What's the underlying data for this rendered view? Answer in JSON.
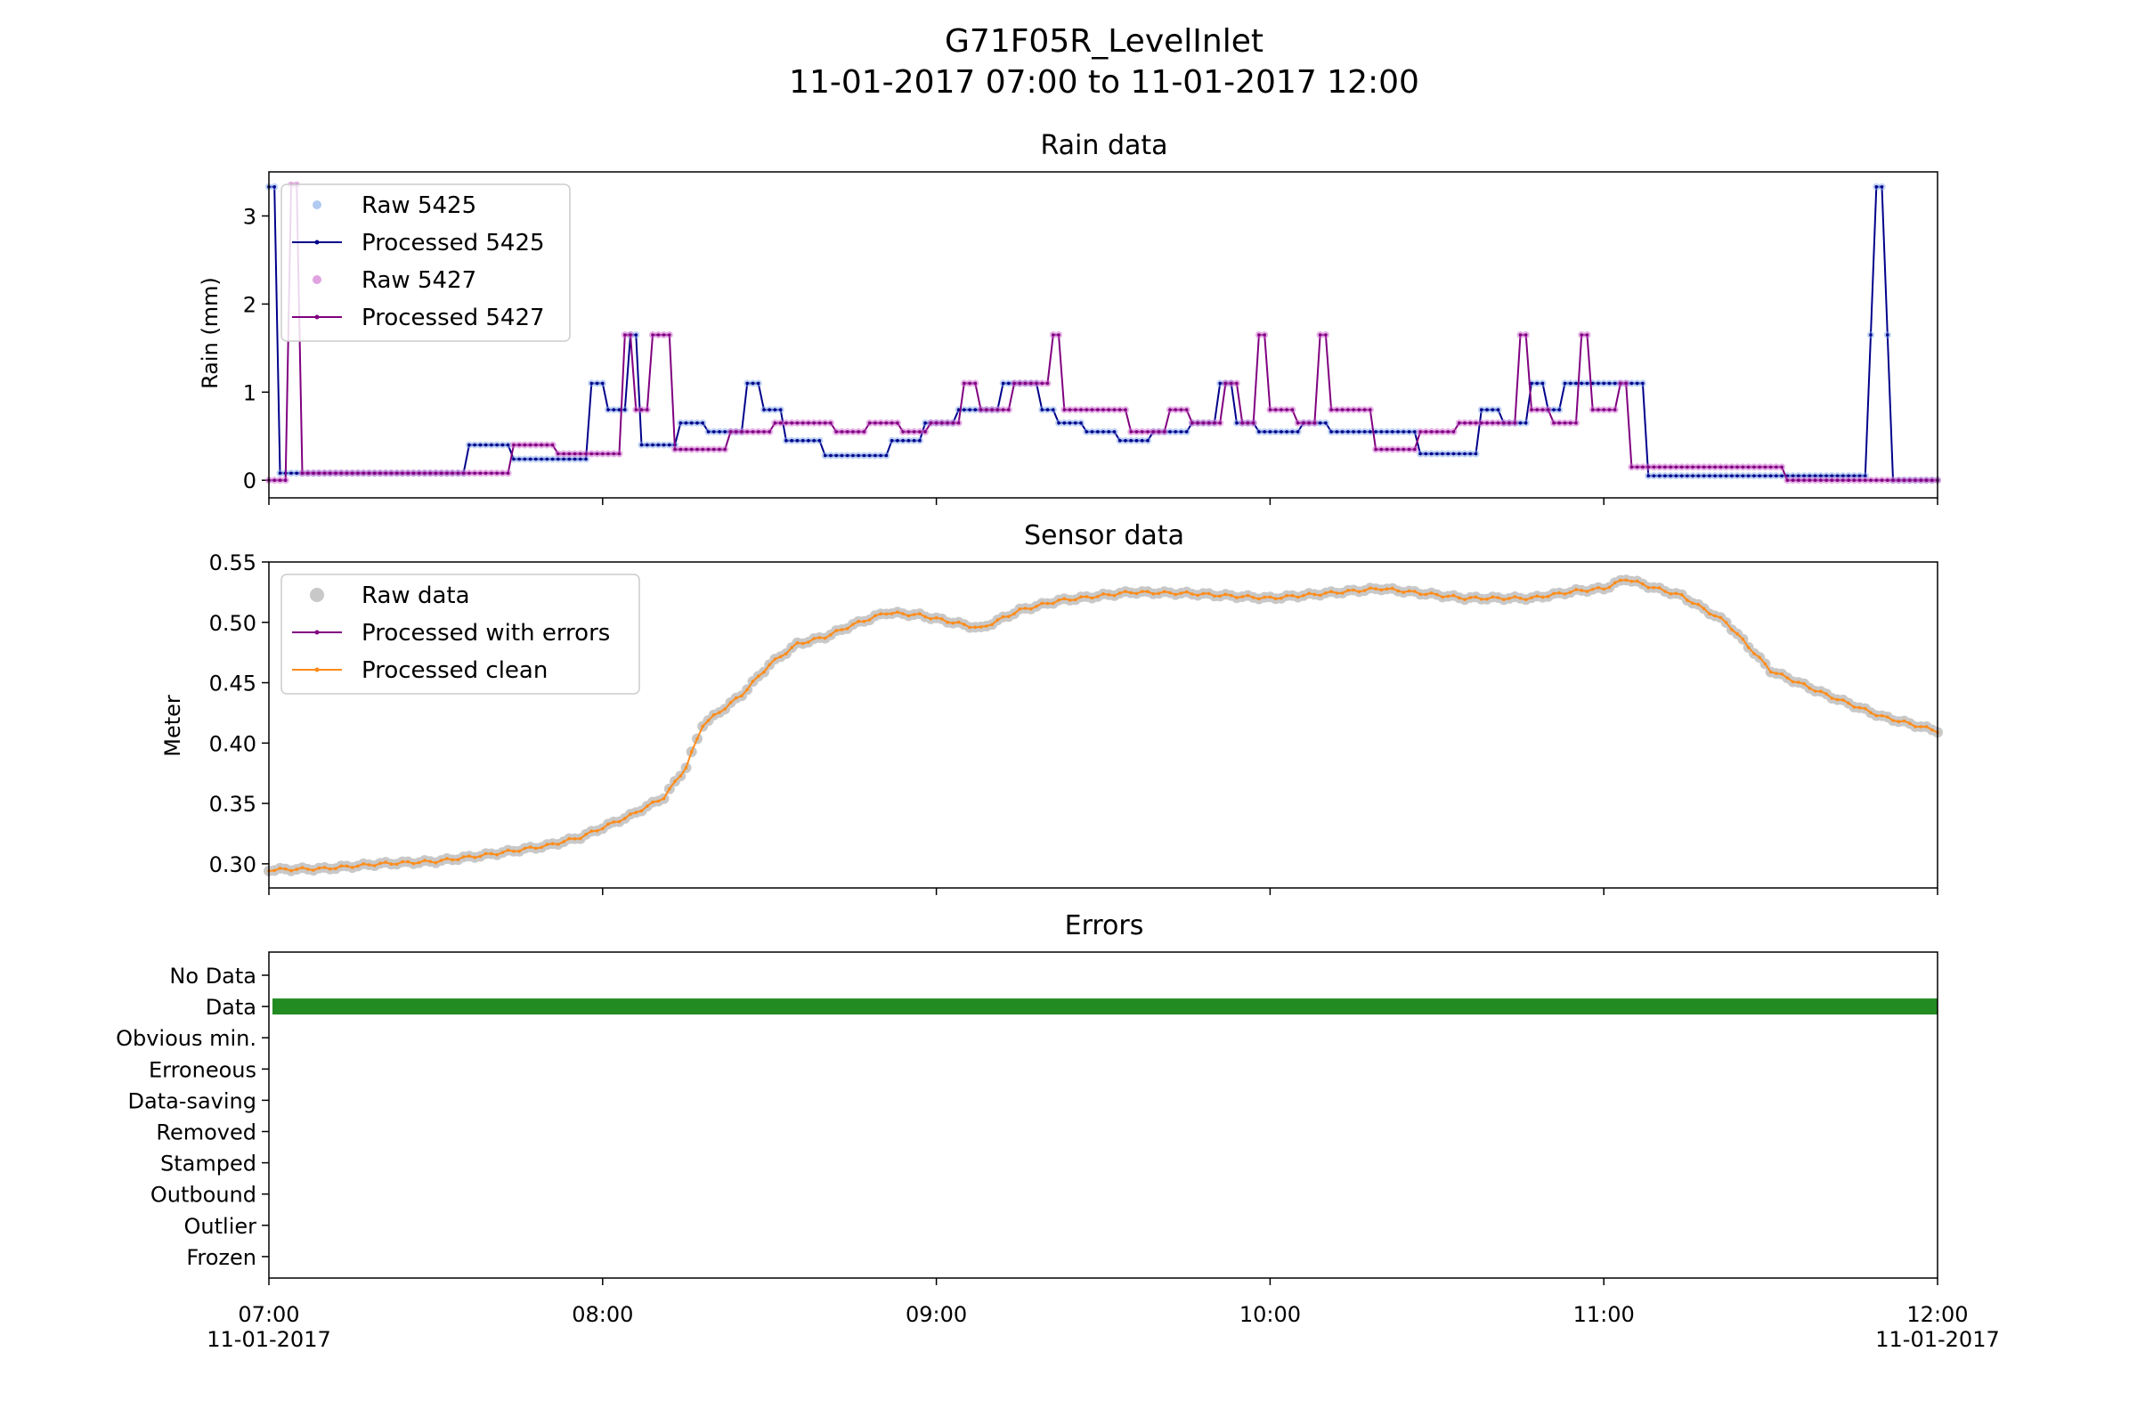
{
  "figure": {
    "title": "G71F05R_LevelInlet",
    "subtitle": "11-01-2017 07:00 to 11-01-2017 12:00"
  },
  "colors": {
    "raw5425": "#7FA6E8",
    "proc5425": "#00008B",
    "raw5427": "#CC66CC",
    "proc5427": "#800080",
    "sensorRaw": "#C8C8C8",
    "sensorErr": "#800080",
    "sensorClean": "#FF8C1A",
    "errorData": "#228B22"
  },
  "x_ticks": [
    {
      "time": "07:00",
      "date": "11-01-2017"
    },
    {
      "time": "08:00",
      "date": ""
    },
    {
      "time": "09:00",
      "date": ""
    },
    {
      "time": "10:00",
      "date": ""
    },
    {
      "time": "11:00",
      "date": ""
    },
    {
      "time": "12:00",
      "date": "11-01-2017"
    }
  ],
  "chart_data": [
    {
      "type": "line",
      "title": "Rain data",
      "ylabel": "Rain (mm)",
      "xlim": [
        "07:00",
        "12:00"
      ],
      "ylim": [
        -0.2,
        3.5
      ],
      "yticks": [
        0,
        1,
        2,
        3
      ],
      "legend_position": "top-left",
      "legend": [
        "Raw 5425",
        "Processed 5425",
        "Raw 5427",
        "Processed 5427"
      ],
      "series": [
        {
          "name": "Processed 5425",
          "step_points": [
            [
              "07:00",
              3.33
            ],
            [
              "07:02",
              0.08
            ],
            [
              "07:12",
              0.08
            ],
            [
              "07:14",
              0.08
            ],
            [
              "07:36",
              0.4
            ],
            [
              "07:44",
              0.24
            ],
            [
              "07:58",
              0.24
            ],
            [
              "07:58",
              1.1
            ],
            [
              "08:01",
              0.8
            ],
            [
              "08:05",
              1.65
            ],
            [
              "08:07",
              0.4
            ],
            [
              "08:14",
              0.65
            ],
            [
              "08:19",
              0.55
            ],
            [
              "08:22",
              0.55
            ],
            [
              "08:26",
              1.1
            ],
            [
              "08:29",
              0.8
            ],
            [
              "08:33",
              0.45
            ],
            [
              "08:40",
              0.28
            ],
            [
              "08:52",
              0.45
            ],
            [
              "08:58",
              0.65
            ],
            [
              "09:04",
              0.8
            ],
            [
              "09:12",
              1.1
            ],
            [
              "09:19",
              0.8
            ],
            [
              "09:22",
              0.65
            ],
            [
              "09:27",
              0.55
            ],
            [
              "09:33",
              0.45
            ],
            [
              "09:39",
              0.55
            ],
            [
              "09:46",
              0.65
            ],
            [
              "09:51",
              1.1
            ],
            [
              "09:54",
              0.65
            ],
            [
              "09:58",
              0.55
            ],
            [
              "10:06",
              0.65
            ],
            [
              "10:11",
              0.55
            ],
            [
              "10:27",
              0.3
            ],
            [
              "10:38",
              0.8
            ],
            [
              "10:42",
              0.65
            ],
            [
              "10:47",
              1.1
            ],
            [
              "10:50",
              0.8
            ],
            [
              "10:53",
              1.1
            ],
            [
              "11:07",
              1.1
            ],
            [
              "11:08",
              0.05
            ],
            [
              "11:47",
              0.05
            ],
            [
              "11:48",
              1.65
            ],
            [
              "11:49",
              3.33
            ],
            [
              "11:51",
              1.65
            ],
            [
              "11:52",
              0.0
            ],
            [
              "12:00",
              0.0
            ]
          ]
        },
        {
          "name": "Processed 5427",
          "step_points": [
            [
              "07:00",
              0.0
            ],
            [
              "07:04",
              3.35
            ],
            [
              "07:06",
              0.08
            ],
            [
              "07:43",
              0.08
            ],
            [
              "07:44",
              0.4
            ],
            [
              "07:52",
              0.3
            ],
            [
              "08:03",
              0.3
            ],
            [
              "08:04",
              1.65
            ],
            [
              "08:06",
              0.8
            ],
            [
              "08:09",
              1.65
            ],
            [
              "08:13",
              0.35
            ],
            [
              "08:23",
              0.55
            ],
            [
              "08:28",
              0.55
            ],
            [
              "08:31",
              0.65
            ],
            [
              "08:42",
              0.55
            ],
            [
              "08:48",
              0.65
            ],
            [
              "08:54",
              0.55
            ],
            [
              "08:59",
              0.65
            ],
            [
              "09:05",
              1.1
            ],
            [
              "09:08",
              0.8
            ],
            [
              "09:14",
              1.1
            ],
            [
              "09:21",
              1.65
            ],
            [
              "09:23",
              0.8
            ],
            [
              "09:35",
              0.55
            ],
            [
              "09:42",
              0.8
            ],
            [
              "09:46",
              0.65
            ],
            [
              "09:52",
              1.1
            ],
            [
              "09:55",
              0.65
            ],
            [
              "09:58",
              1.65
            ],
            [
              "10:00",
              0.8
            ],
            [
              "10:05",
              0.65
            ],
            [
              "10:09",
              1.65
            ],
            [
              "10:11",
              0.8
            ],
            [
              "10:19",
              0.35
            ],
            [
              "10:27",
              0.55
            ],
            [
              "10:34",
              0.65
            ],
            [
              "10:45",
              1.65
            ],
            [
              "10:47",
              0.8
            ],
            [
              "10:51",
              0.65
            ],
            [
              "10:56",
              1.65
            ],
            [
              "10:58",
              0.8
            ],
            [
              "11:03",
              1.1
            ],
            [
              "11:05",
              0.15
            ],
            [
              "11:33",
              0.0
            ],
            [
              "12:00",
              0.0
            ]
          ]
        }
      ]
    },
    {
      "type": "line",
      "title": "Sensor data",
      "ylabel": "Meter",
      "xlim": [
        "07:00",
        "12:00"
      ],
      "ylim": [
        0.28,
        0.55
      ],
      "yticks": [
        0.3,
        0.35,
        0.4,
        0.45,
        0.5,
        0.55
      ],
      "legend_position": "top-left",
      "legend": [
        "Raw data",
        "Processed with errors",
        "Processed clean"
      ],
      "series": [
        {
          "name": "Processed clean",
          "points": [
            [
              "07:00",
              0.295
            ],
            [
              "07:10",
              0.296
            ],
            [
              "07:20",
              0.3
            ],
            [
              "07:30",
              0.302
            ],
            [
              "07:40",
              0.308
            ],
            [
              "07:50",
              0.315
            ],
            [
              "07:56",
              0.322
            ],
            [
              "08:05",
              0.34
            ],
            [
              "08:11",
              0.355
            ],
            [
              "08:15",
              0.38
            ],
            [
              "08:18",
              0.415
            ],
            [
              "08:25",
              0.44
            ],
            [
              "08:30",
              0.465
            ],
            [
              "08:35",
              0.482
            ],
            [
              "08:40",
              0.488
            ],
            [
              "08:45",
              0.498
            ],
            [
              "08:51",
              0.508
            ],
            [
              "08:57",
              0.506
            ],
            [
              "09:05",
              0.498
            ],
            [
              "09:08",
              0.495
            ],
            [
              "09:15",
              0.51
            ],
            [
              "09:22",
              0.518
            ],
            [
              "09:35",
              0.525
            ],
            [
              "09:45",
              0.524
            ],
            [
              "10:00",
              0.52
            ],
            [
              "10:10",
              0.524
            ],
            [
              "10:20",
              0.528
            ],
            [
              "10:35",
              0.52
            ],
            [
              "10:47",
              0.52
            ],
            [
              "10:55",
              0.526
            ],
            [
              "11:00",
              0.528
            ],
            [
              "11:04",
              0.536
            ],
            [
              "11:08",
              0.53
            ],
            [
              "11:14",
              0.522
            ],
            [
              "11:22",
              0.5
            ],
            [
              "11:30",
              0.46
            ],
            [
              "11:40",
              0.44
            ],
            [
              "11:50",
              0.422
            ],
            [
              "12:00",
              0.41
            ]
          ]
        }
      ]
    },
    {
      "type": "bar",
      "title": "Errors",
      "categories": [
        "No Data",
        "Data",
        "Obvious min.",
        "Erroneous",
        "Data-saving",
        "Removed",
        "Stamped",
        "Outbound",
        "Outlier",
        "Frozen"
      ],
      "series": [
        {
          "category": "Data",
          "from": "07:00",
          "to": "12:00"
        }
      ]
    }
  ]
}
